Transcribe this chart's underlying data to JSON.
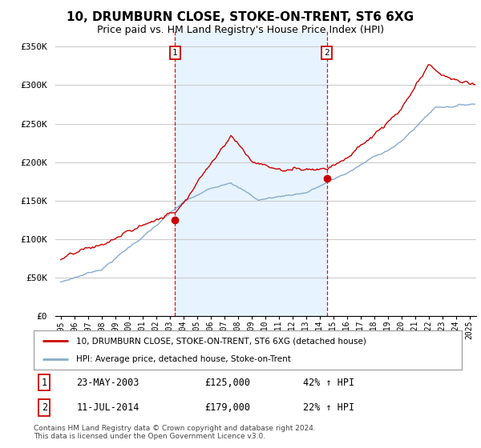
{
  "title": "10, DRUMBURN CLOSE, STOKE-ON-TRENT, ST6 6XG",
  "subtitle": "Price paid vs. HM Land Registry's House Price Index (HPI)",
  "ylabel_ticks": [
    "£0",
    "£50K",
    "£100K",
    "£150K",
    "£200K",
    "£250K",
    "£300K",
    "£350K"
  ],
  "ytick_values": [
    0,
    50000,
    100000,
    150000,
    200000,
    250000,
    300000,
    350000
  ],
  "ylim": [
    0,
    370000
  ],
  "xlim_start": 1994.6,
  "xlim_end": 2025.5,
  "purchase1_x": 2003.38,
  "purchase1_y": 125000,
  "purchase1_label": "1",
  "purchase1_date": "23-MAY-2003",
  "purchase1_price": "£125,000",
  "purchase1_hpi": "42% ↑ HPI",
  "purchase2_x": 2014.53,
  "purchase2_y": 179000,
  "purchase2_label": "2",
  "purchase2_date": "11-JUL-2014",
  "purchase2_price": "£179,000",
  "purchase2_hpi": "22% ↑ HPI",
  "red_line_color": "#cc0000",
  "blue_line_color": "#88aacc",
  "shade_color": "#ddeeff",
  "vline_color": "#cc0000",
  "marker_color": "#cc0000",
  "legend1_label": "10, DRUMBURN CLOSE, STOKE-ON-TRENT, ST6 6XG (detached house)",
  "legend2_label": "HPI: Average price, detached house, Stoke-on-Trent",
  "footnote": "Contains HM Land Registry data © Crown copyright and database right 2024.\nThis data is licensed under the Open Government Licence v3.0.",
  "background_color": "#ffffff",
  "grid_color": "#cccccc",
  "title_fontsize": 11,
  "subtitle_fontsize": 9
}
